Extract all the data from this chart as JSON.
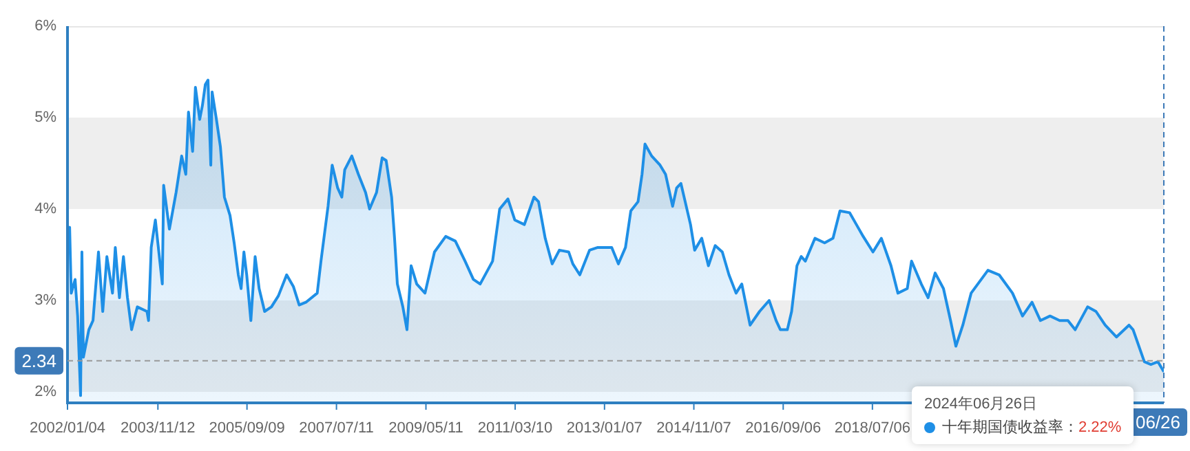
{
  "chart_data": {
    "type": "area",
    "x": [
      "2002-01-04",
      "2002-01-20",
      "2002-02-01",
      "2002-03-02",
      "2002-03-21",
      "2002-04-12",
      "2002-04-22",
      "2002-05-03",
      "2002-06-13",
      "2002-07-14",
      "2002-08-24",
      "2002-09-25",
      "2002-10-26",
      "2002-12-07",
      "2002-12-28",
      "2003-01-28",
      "2003-02-27",
      "2003-03-29",
      "2003-04-29",
      "2003-06-11",
      "2003-08-22",
      "2003-09-03",
      "2003-09-23",
      "2003-10-24",
      "2003-12-15",
      "2003-12-25",
      "2004-02-06",
      "2004-03-27",
      "2004-05-08",
      "2004-06-08",
      "2004-06-28",
      "2004-07-29",
      "2004-08-19",
      "2004-09-20",
      "2004-10-10",
      "2004-11-01",
      "2004-11-21",
      "2004-12-12",
      "2004-12-22",
      "2005-01-23",
      "2005-02-22",
      "2005-03-24",
      "2005-05-05",
      "2005-06-05",
      "2005-07-06",
      "2005-07-27",
      "2005-08-17",
      "2005-09-07",
      "2005-10-08",
      "2005-11-09",
      "2005-12-09",
      "2006-01-19",
      "2006-03-11",
      "2006-05-02",
      "2006-07-03",
      "2006-08-23",
      "2006-10-05",
      "2006-11-24",
      "2007-02-17",
      "2007-03-17",
      "2007-05-09",
      "2007-06-09",
      "2007-07-20",
      "2007-08-20",
      "2007-09-11",
      "2007-11-03",
      "2007-12-22",
      "2008-02-14",
      "2008-03-15",
      "2008-05-06",
      "2008-06-17",
      "2008-07-17",
      "2008-08-27",
      "2008-09-18",
      "2008-10-09",
      "2008-11-19",
      "2008-12-20",
      "2009-01-20",
      "2009-03-03",
      "2009-05-04",
      "2009-07-14",
      "2009-10-06",
      "2009-12-17",
      "2010-02-28",
      "2010-05-01",
      "2010-06-21",
      "2010-09-22",
      "2010-11-14",
      "2011-01-15",
      "2011-03-07",
      "2011-05-18",
      "2011-07-29",
      "2011-09-01",
      "2011-10-21",
      "2011-12-12",
      "2012-02-04",
      "2012-04-14",
      "2012-05-15",
      "2012-07-06",
      "2012-09-17",
      "2012-11-18",
      "2013-03-02",
      "2013-04-21",
      "2013-06-13",
      "2013-07-23",
      "2013-09-15",
      "2013-10-15",
      "2013-11-06",
      "2013-12-26",
      "2014-02-27",
      "2014-04-09",
      "2014-06-01",
      "2014-07-01",
      "2014-08-02",
      "2014-09-03",
      "2014-10-13",
      "2014-11-13",
      "2015-01-05",
      "2015-02-24",
      "2015-04-16",
      "2015-06-08",
      "2015-07-28",
      "2015-09-19",
      "2015-11-01",
      "2016-01-02",
      "2016-03-13",
      "2016-05-24",
      "2016-07-15",
      "2016-08-16",
      "2016-10-07",
      "2016-11-08",
      "2016-12-18",
      "2017-01-19",
      "2017-02-19",
      "2017-05-02",
      "2017-07-13",
      "2017-09-14",
      "2017-11-05",
      "2018-01-16",
      "2018-03-08",
      "2018-04-28",
      "2018-07-10",
      "2018-09-11",
      "2018-11-22",
      "2019-01-13",
      "2019-03-24",
      "2019-04-25",
      "2019-07-07",
      "2019-08-27",
      "2019-10-19",
      "2019-12-20",
      "2020-02-11",
      "2020-03-22",
      "2020-05-13",
      "2020-07-14",
      "2020-11-17",
      "2021-02-09",
      "2021-05-20",
      "2021-08-03",
      "2021-10-13",
      "2021-12-15",
      "2022-02-25",
      "2022-05-08",
      "2022-07-09",
      "2022-09-01",
      "2022-12-03",
      "2023-02-04",
      "2023-04-14",
      "2023-07-07",
      "2023-10-09",
      "2023-11-09",
      "2024-02-01",
      "2024-03-21",
      "2024-05-13",
      "2024-06-26"
    ],
    "series": [
      {
        "name": "十年期国债收益率：",
        "color": "#1e8fe6",
        "values": [
          3.63,
          3.8,
          3.08,
          3.23,
          2.83,
          1.96,
          3.53,
          2.38,
          2.68,
          2.78,
          3.53,
          2.88,
          3.48,
          3.08,
          3.58,
          3.03,
          3.48,
          3.03,
          2.68,
          2.93,
          2.88,
          2.78,
          3.58,
          3.88,
          3.18,
          4.26,
          3.78,
          4.18,
          4.58,
          4.38,
          5.06,
          4.63,
          5.33,
          4.98,
          5.13,
          5.36,
          5.41,
          4.48,
          5.28,
          4.98,
          4.68,
          4.13,
          3.93,
          3.63,
          3.28,
          3.13,
          3.53,
          3.28,
          2.78,
          3.48,
          3.13,
          2.88,
          2.93,
          3.05,
          3.28,
          3.15,
          2.95,
          2.98,
          3.08,
          3.43,
          4.03,
          4.48,
          4.23,
          4.13,
          4.43,
          4.58,
          4.38,
          4.18,
          4.0,
          4.18,
          4.56,
          4.53,
          4.13,
          3.68,
          3.18,
          2.93,
          2.68,
          3.38,
          3.18,
          3.08,
          3.53,
          3.7,
          3.65,
          3.43,
          3.23,
          3.18,
          3.43,
          4.0,
          4.11,
          3.88,
          3.83,
          4.13,
          4.08,
          3.68,
          3.4,
          3.55,
          3.53,
          3.4,
          3.28,
          3.55,
          3.58,
          3.58,
          3.4,
          3.58,
          3.98,
          4.08,
          4.38,
          4.71,
          4.58,
          4.48,
          4.38,
          4.03,
          4.23,
          4.28,
          4.08,
          3.83,
          3.55,
          3.68,
          3.38,
          3.6,
          3.53,
          3.28,
          3.08,
          3.18,
          2.73,
          2.88,
          3.0,
          2.78,
          2.68,
          2.68,
          2.88,
          3.38,
          3.48,
          3.43,
          3.68,
          3.63,
          3.68,
          3.98,
          3.96,
          3.83,
          3.7,
          3.53,
          3.68,
          3.38,
          3.08,
          3.13,
          3.43,
          3.18,
          3.03,
          3.3,
          3.13,
          2.78,
          2.5,
          2.73,
          3.08,
          3.33,
          3.28,
          3.08,
          2.83,
          2.98,
          2.78,
          2.83,
          2.78,
          2.78,
          2.68,
          2.93,
          2.88,
          2.73,
          2.6,
          2.73,
          2.68,
          2.33,
          2.3,
          2.33,
          2.22
        ]
      }
    ],
    "xlim": [
      "2002-01-04",
      "2024-06-26"
    ],
    "xticks": [
      {
        "value": "2002-01-04",
        "label": "2002/01/04"
      },
      {
        "value": "2003-11-12",
        "label": "2003/11/12"
      },
      {
        "value": "2005-09-09",
        "label": "2005/09/09"
      },
      {
        "value": "2007-07-11",
        "label": "2007/07/11"
      },
      {
        "value": "2009-05-11",
        "label": "2009/05/11"
      },
      {
        "value": "2011-03-10",
        "label": "2011/03/10"
      },
      {
        "value": "2013-01-07",
        "label": "2013/01/07"
      },
      {
        "value": "2014-11-07",
        "label": "2014/11/07"
      },
      {
        "value": "2016-09-06",
        "label": "2016/09/06"
      },
      {
        "value": "2018-07-06",
        "label": "2018/07/06"
      }
    ],
    "ylim": [
      1.88,
      6
    ],
    "yticks": [
      {
        "value": 2,
        "label": "2%"
      },
      {
        "value": 3,
        "label": "3%"
      },
      {
        "value": 4,
        "label": "4%"
      },
      {
        "value": 5,
        "label": "5%"
      },
      {
        "value": 6,
        "label": "6%"
      }
    ],
    "bands": [
      {
        "axis": "y",
        "from": 2,
        "to": 3,
        "color": "#eeeeee"
      },
      {
        "axis": "y",
        "from": 4,
        "to": 5,
        "color": "#eeeeee"
      }
    ],
    "ref_lines": [
      {
        "axis": "y",
        "value": 2.34,
        "label": "2.34",
        "line_style": "dashed",
        "color": "#999999"
      },
      {
        "axis": "x",
        "value": "2024-06-26",
        "label": "06/26",
        "line_style": "dashed",
        "color": "#3d7ab8"
      }
    ],
    "annotations": [
      "2024年06月26日",
      "2.22%"
    ],
    "grid": false,
    "legend": "bottom right",
    "marker": "none",
    "line_style": "solid"
  }
}
